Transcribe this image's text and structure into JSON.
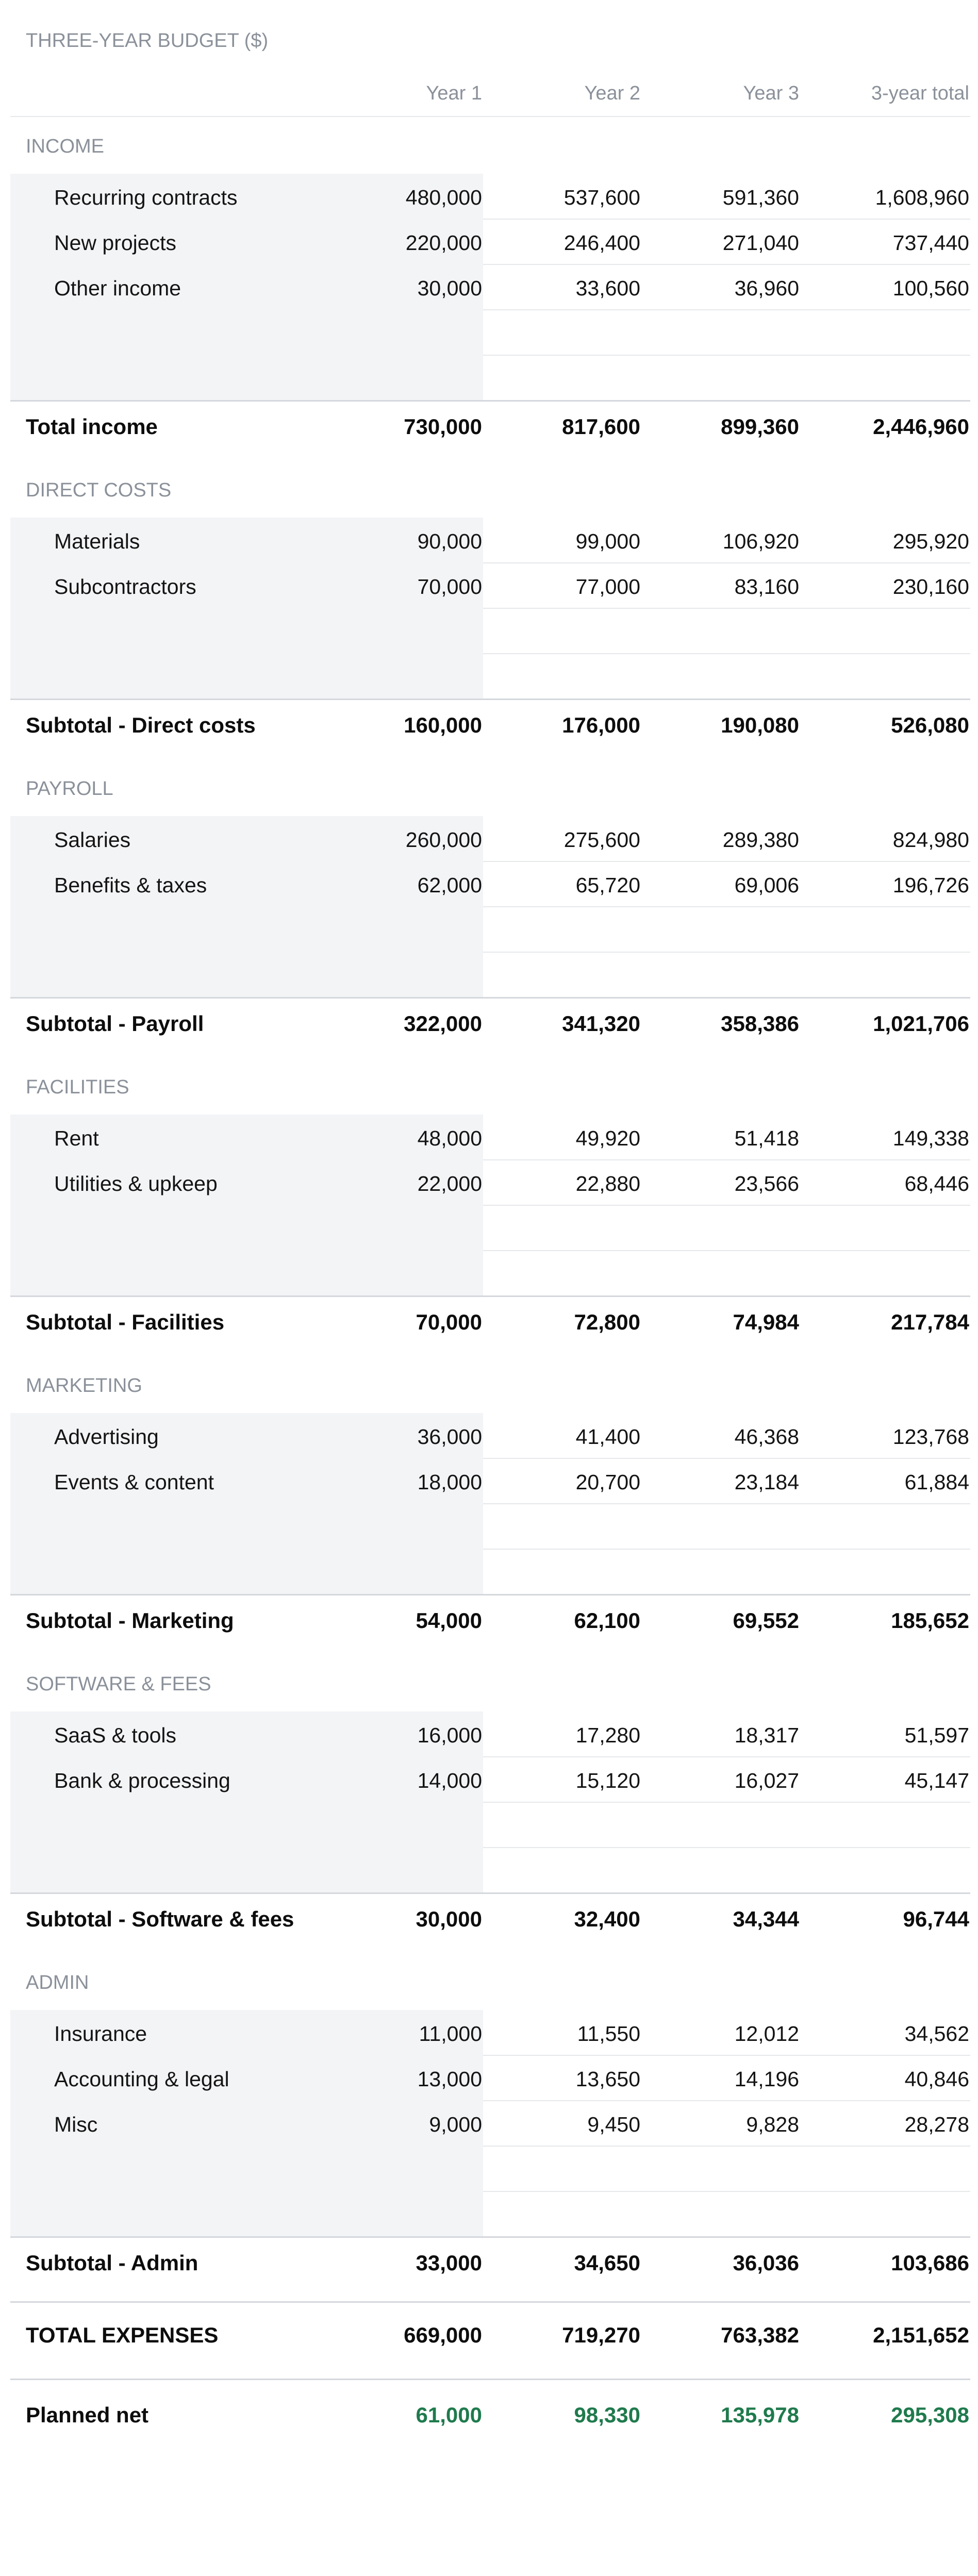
{
  "title": "THREE-YEAR BUDGET ($)",
  "columns": [
    "Year 1",
    "Year 2",
    "Year 3",
    "3-year total"
  ],
  "sections": [
    {
      "name": "INCOME",
      "rows": [
        {
          "label": "Recurring contracts",
          "values": [
            "480,000",
            "537,600",
            "591,360",
            "1,608,960"
          ]
        },
        {
          "label": "New projects",
          "values": [
            "220,000",
            "246,400",
            "271,040",
            "737,440"
          ]
        },
        {
          "label": "Other income",
          "values": [
            "30,000",
            "33,600",
            "36,960",
            "100,560"
          ]
        }
      ],
      "blank_rows": 2,
      "subtotal": {
        "label": "Total income",
        "values": [
          "730,000",
          "817,600",
          "899,360",
          "2,446,960"
        ]
      }
    },
    {
      "name": "DIRECT COSTS",
      "rows": [
        {
          "label": "Materials",
          "values": [
            "90,000",
            "99,000",
            "106,920",
            "295,920"
          ]
        },
        {
          "label": "Subcontractors",
          "values": [
            "70,000",
            "77,000",
            "83,160",
            "230,160"
          ]
        }
      ],
      "blank_rows": 2,
      "subtotal": {
        "label": "Subtotal - Direct costs",
        "values": [
          "160,000",
          "176,000",
          "190,080",
          "526,080"
        ]
      }
    },
    {
      "name": "PAYROLL",
      "rows": [
        {
          "label": "Salaries",
          "values": [
            "260,000",
            "275,600",
            "289,380",
            "824,980"
          ]
        },
        {
          "label": "Benefits & taxes",
          "values": [
            "62,000",
            "65,720",
            "69,006",
            "196,726"
          ]
        }
      ],
      "blank_rows": 2,
      "subtotal": {
        "label": "Subtotal - Payroll",
        "values": [
          "322,000",
          "341,320",
          "358,386",
          "1,021,706"
        ]
      }
    },
    {
      "name": "FACILITIES",
      "rows": [
        {
          "label": "Rent",
          "values": [
            "48,000",
            "49,920",
            "51,418",
            "149,338"
          ]
        },
        {
          "label": "Utilities & upkeep",
          "values": [
            "22,000",
            "22,880",
            "23,566",
            "68,446"
          ]
        }
      ],
      "blank_rows": 2,
      "subtotal": {
        "label": "Subtotal - Facilities",
        "values": [
          "70,000",
          "72,800",
          "74,984",
          "217,784"
        ]
      }
    },
    {
      "name": "MARKETING",
      "rows": [
        {
          "label": "Advertising",
          "values": [
            "36,000",
            "41,400",
            "46,368",
            "123,768"
          ]
        },
        {
          "label": "Events & content",
          "values": [
            "18,000",
            "20,700",
            "23,184",
            "61,884"
          ]
        }
      ],
      "blank_rows": 2,
      "subtotal": {
        "label": "Subtotal - Marketing",
        "values": [
          "54,000",
          "62,100",
          "69,552",
          "185,652"
        ]
      }
    },
    {
      "name": "SOFTWARE & FEES",
      "rows": [
        {
          "label": "SaaS & tools",
          "values": [
            "16,000",
            "17,280",
            "18,317",
            "51,597"
          ]
        },
        {
          "label": "Bank & processing",
          "values": [
            "14,000",
            "15,120",
            "16,027",
            "45,147"
          ]
        }
      ],
      "blank_rows": 2,
      "subtotal": {
        "label": "Subtotal - Software & fees",
        "values": [
          "30,000",
          "32,400",
          "34,344",
          "96,744"
        ]
      }
    },
    {
      "name": "ADMIN",
      "rows": [
        {
          "label": "Insurance",
          "values": [
            "11,000",
            "11,550",
            "12,012",
            "34,562"
          ]
        },
        {
          "label": "Accounting & legal",
          "values": [
            "13,000",
            "13,650",
            "14,196",
            "40,846"
          ]
        },
        {
          "label": "Misc",
          "values": [
            "9,000",
            "9,450",
            "9,828",
            "28,278"
          ]
        }
      ],
      "blank_rows": 2,
      "subtotal": {
        "label": "Subtotal - Admin",
        "values": [
          "33,000",
          "34,650",
          "36,036",
          "103,686"
        ]
      }
    }
  ],
  "total_expenses": {
    "label": "TOTAL EXPENSES",
    "values": [
      "669,000",
      "719,270",
      "763,382",
      "2,151,652"
    ]
  },
  "planned_net": {
    "label": "Planned net",
    "values": [
      "61,000",
      "98,330",
      "135,978",
      "295,308"
    ]
  },
  "colors": {
    "positive": "#1f7a4d",
    "muted_text": "#8b919a",
    "input_shading": "#f3f4f6",
    "rule": "#e6e8eb"
  }
}
